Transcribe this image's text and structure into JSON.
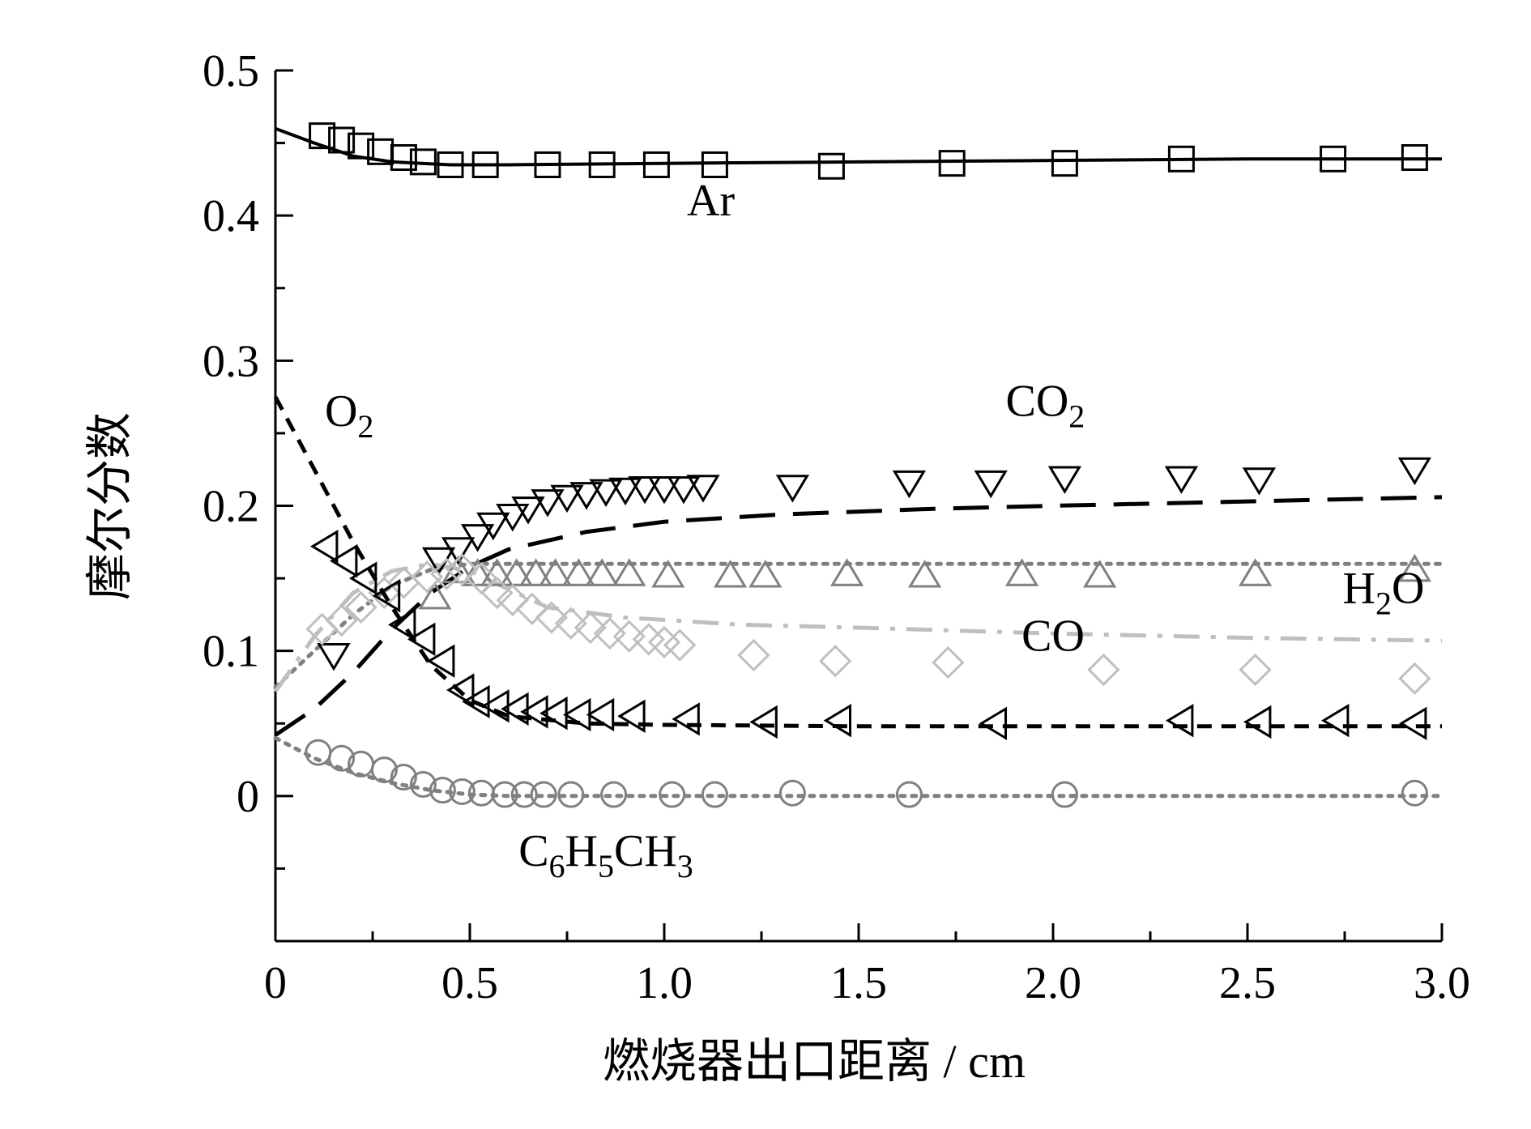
{
  "chart_data": {
    "type": "scatter",
    "xlabel": "燃烧器出口距离 / cm",
    "ylabel": "摩尔分数",
    "xlim": [
      0,
      3.0
    ],
    "ylim": [
      -0.1,
      0.5
    ],
    "x_ticks": [
      "0",
      "0.5",
      "1.0",
      "1.5",
      "2.0",
      "2.5",
      "3.0"
    ],
    "y_ticks": [
      "0",
      "0.1",
      "0.2",
      "0.3",
      "0.4",
      "0.5"
    ],
    "series": [
      {
        "name": "Ar",
        "marker": "square",
        "color": "#000000",
        "points": [
          [
            0.12,
            0.455
          ],
          [
            0.17,
            0.452
          ],
          [
            0.22,
            0.448
          ],
          [
            0.27,
            0.444
          ],
          [
            0.33,
            0.44
          ],
          [
            0.38,
            0.437
          ],
          [
            0.45,
            0.435
          ],
          [
            0.54,
            0.435
          ],
          [
            0.7,
            0.435
          ],
          [
            0.84,
            0.435
          ],
          [
            0.98,
            0.435
          ],
          [
            1.13,
            0.435
          ],
          [
            1.43,
            0.434
          ],
          [
            1.74,
            0.436
          ],
          [
            2.03,
            0.436
          ],
          [
            2.33,
            0.439
          ],
          [
            2.72,
            0.439
          ],
          [
            2.93,
            0.44
          ]
        ],
        "curve": [
          [
            0,
            0.46
          ],
          [
            0.1,
            0.45
          ],
          [
            0.2,
            0.441
          ],
          [
            0.3,
            0.437
          ],
          [
            0.45,
            0.435
          ],
          [
            0.6,
            0.435
          ],
          [
            1.0,
            0.436
          ],
          [
            1.5,
            0.437
          ],
          [
            2.0,
            0.438
          ],
          [
            2.5,
            0.439
          ],
          [
            3.0,
            0.439
          ]
        ],
        "line_style": "solid"
      },
      {
        "name": "CO2",
        "marker": "triangle-down",
        "color": "#000000",
        "points": [
          [
            0.15,
            0.097
          ],
          [
            0.42,
            0.163
          ],
          [
            0.47,
            0.17
          ],
          [
            0.52,
            0.179
          ],
          [
            0.56,
            0.187
          ],
          [
            0.61,
            0.193
          ],
          [
            0.65,
            0.198
          ],
          [
            0.7,
            0.203
          ],
          [
            0.75,
            0.206
          ],
          [
            0.8,
            0.208
          ],
          [
            0.85,
            0.21
          ],
          [
            0.9,
            0.211
          ],
          [
            0.95,
            0.212
          ],
          [
            1.0,
            0.212
          ],
          [
            1.05,
            0.212
          ],
          [
            1.1,
            0.213
          ],
          [
            1.33,
            0.213
          ],
          [
            1.63,
            0.216
          ],
          [
            1.84,
            0.216
          ],
          [
            2.03,
            0.219
          ],
          [
            2.33,
            0.219
          ],
          [
            2.53,
            0.218
          ],
          [
            2.93,
            0.225
          ]
        ],
        "curve": [
          [
            0,
            0.042
          ],
          [
            0.1,
            0.06
          ],
          [
            0.2,
            0.085
          ],
          [
            0.3,
            0.115
          ],
          [
            0.4,
            0.14
          ],
          [
            0.5,
            0.158
          ],
          [
            0.6,
            0.17
          ],
          [
            0.8,
            0.182
          ],
          [
            1.0,
            0.189
          ],
          [
            1.3,
            0.194
          ],
          [
            1.7,
            0.198
          ],
          [
            2.0,
            0.2
          ],
          [
            2.5,
            0.203
          ],
          [
            3.0,
            0.206
          ]
        ],
        "line_style": "long-dash"
      },
      {
        "name": "H2O",
        "marker": "triangle-up",
        "color": "#808080",
        "points": [
          [
            0.41,
            0.137
          ],
          [
            0.47,
            0.155
          ],
          [
            0.52,
            0.153
          ],
          [
            0.57,
            0.153
          ],
          [
            0.62,
            0.153
          ],
          [
            0.67,
            0.153
          ],
          [
            0.72,
            0.153
          ],
          [
            0.78,
            0.153
          ],
          [
            0.84,
            0.153
          ],
          [
            0.91,
            0.153
          ],
          [
            1.01,
            0.152
          ],
          [
            1.17,
            0.152
          ],
          [
            1.26,
            0.152
          ],
          [
            1.47,
            0.153
          ],
          [
            1.67,
            0.152
          ],
          [
            1.92,
            0.153
          ],
          [
            2.12,
            0.152
          ],
          [
            2.52,
            0.153
          ],
          [
            2.93,
            0.156
          ]
        ],
        "curve": [
          [
            0,
            0.075
          ],
          [
            0.1,
            0.1
          ],
          [
            0.2,
            0.125
          ],
          [
            0.3,
            0.145
          ],
          [
            0.4,
            0.156
          ],
          [
            0.5,
            0.16
          ],
          [
            1.0,
            0.16
          ],
          [
            2.0,
            0.16
          ],
          [
            3.0,
            0.16
          ]
        ],
        "line_style": "dotted"
      },
      {
        "name": "CO",
        "marker": "diamond",
        "color": "#bfbfbf",
        "points": [
          [
            0.12,
            0.115
          ],
          [
            0.17,
            0.121
          ],
          [
            0.22,
            0.13
          ],
          [
            0.28,
            0.14
          ],
          [
            0.33,
            0.147
          ],
          [
            0.39,
            0.151
          ],
          [
            0.44,
            0.153
          ],
          [
            0.48,
            0.156
          ],
          [
            0.53,
            0.15
          ],
          [
            0.57,
            0.14
          ],
          [
            0.61,
            0.135
          ],
          [
            0.66,
            0.129
          ],
          [
            0.71,
            0.123
          ],
          [
            0.76,
            0.119
          ],
          [
            0.81,
            0.116
          ],
          [
            0.86,
            0.112
          ],
          [
            0.91,
            0.11
          ],
          [
            0.96,
            0.108
          ],
          [
            1.0,
            0.106
          ],
          [
            1.04,
            0.104
          ],
          [
            1.23,
            0.097
          ],
          [
            1.44,
            0.093
          ],
          [
            1.73,
            0.092
          ],
          [
            2.13,
            0.087
          ],
          [
            2.52,
            0.087
          ],
          [
            2.93,
            0.081
          ]
        ],
        "curve": [
          [
            0,
            0.072
          ],
          [
            0.1,
            0.11
          ],
          [
            0.2,
            0.14
          ],
          [
            0.3,
            0.155
          ],
          [
            0.4,
            0.16
          ],
          [
            0.5,
            0.155
          ],
          [
            0.7,
            0.13
          ],
          [
            0.9,
            0.123
          ],
          [
            1.2,
            0.118
          ],
          [
            1.5,
            0.116
          ],
          [
            2.0,
            0.112
          ],
          [
            2.5,
            0.109
          ],
          [
            3.0,
            0.107
          ]
        ],
        "line_style": "dash-dot"
      },
      {
        "name": "O2",
        "marker": "triangle-left",
        "color": "#000000",
        "points": [
          [
            0.13,
            0.172
          ],
          [
            0.18,
            0.162
          ],
          [
            0.23,
            0.15
          ],
          [
            0.29,
            0.138
          ],
          [
            0.33,
            0.118
          ],
          [
            0.38,
            0.108
          ],
          [
            0.43,
            0.093
          ],
          [
            0.48,
            0.073
          ],
          [
            0.52,
            0.065
          ],
          [
            0.57,
            0.062
          ],
          [
            0.62,
            0.06
          ],
          [
            0.67,
            0.058
          ],
          [
            0.72,
            0.057
          ],
          [
            0.78,
            0.056
          ],
          [
            0.84,
            0.056
          ],
          [
            0.92,
            0.055
          ],
          [
            1.06,
            0.053
          ],
          [
            1.26,
            0.051
          ],
          [
            1.45,
            0.052
          ],
          [
            1.85,
            0.05
          ],
          [
            2.33,
            0.052
          ],
          [
            2.53,
            0.051
          ],
          [
            2.73,
            0.052
          ],
          [
            2.93,
            0.05
          ]
        ],
        "curve": [
          [
            0,
            0.275
          ],
          [
            0.1,
            0.225
          ],
          [
            0.2,
            0.175
          ],
          [
            0.3,
            0.13
          ],
          [
            0.4,
            0.09
          ],
          [
            0.5,
            0.066
          ],
          [
            0.6,
            0.055
          ],
          [
            0.8,
            0.05
          ],
          [
            1.0,
            0.049
          ],
          [
            1.5,
            0.048
          ],
          [
            2.0,
            0.048
          ],
          [
            2.5,
            0.048
          ],
          [
            3.0,
            0.048
          ]
        ],
        "line_style": "short-dash"
      },
      {
        "name": "C6H5CH3",
        "marker": "circle",
        "color": "#808080",
        "points": [
          [
            0.11,
            0.03
          ],
          [
            0.17,
            0.026
          ],
          [
            0.22,
            0.022
          ],
          [
            0.28,
            0.018
          ],
          [
            0.33,
            0.013
          ],
          [
            0.38,
            0.008
          ],
          [
            0.43,
            0.004
          ],
          [
            0.48,
            0.003
          ],
          [
            0.53,
            0.002
          ],
          [
            0.59,
            0.001
          ],
          [
            0.64,
            0.001
          ],
          [
            0.69,
            0.001
          ],
          [
            0.76,
            0.001
          ],
          [
            0.87,
            0.001
          ],
          [
            1.02,
            0.001
          ],
          [
            1.13,
            0.001
          ],
          [
            1.33,
            0.002
          ],
          [
            1.63,
            0.001
          ],
          [
            2.03,
            0.001
          ],
          [
            2.93,
            0.002
          ]
        ],
        "curve": [
          [
            0,
            0.04
          ],
          [
            0.1,
            0.026
          ],
          [
            0.2,
            0.016
          ],
          [
            0.3,
            0.009
          ],
          [
            0.4,
            0.004
          ],
          [
            0.5,
            0.001
          ],
          [
            0.6,
            0.0
          ],
          [
            1.0,
            0.0
          ],
          [
            2.0,
            0.0
          ],
          [
            3.0,
            0.0
          ]
        ],
        "line_style": "dotted"
      }
    ],
    "labels": [
      {
        "base": "Ar",
        "sub": "",
        "rest": "",
        "x": 1.12,
        "y": 0.4
      },
      {
        "base": "O",
        "sub": "2",
        "rest": "",
        "x": 0.19,
        "y": 0.255
      },
      {
        "base": "CO",
        "sub": "2",
        "rest": "",
        "x": 1.98,
        "y": 0.262
      },
      {
        "base": "H",
        "sub": "2",
        "rest": "O",
        "x": 2.85,
        "y": 0.133
      },
      {
        "base": "CO",
        "sub": "",
        "rest": "",
        "x": 2.0,
        "y": 0.1
      },
      {
        "base": "C",
        "sub": "6",
        "rest": "H|5|CH|3",
        "x": 0.85,
        "y": -0.048
      }
    ]
  }
}
